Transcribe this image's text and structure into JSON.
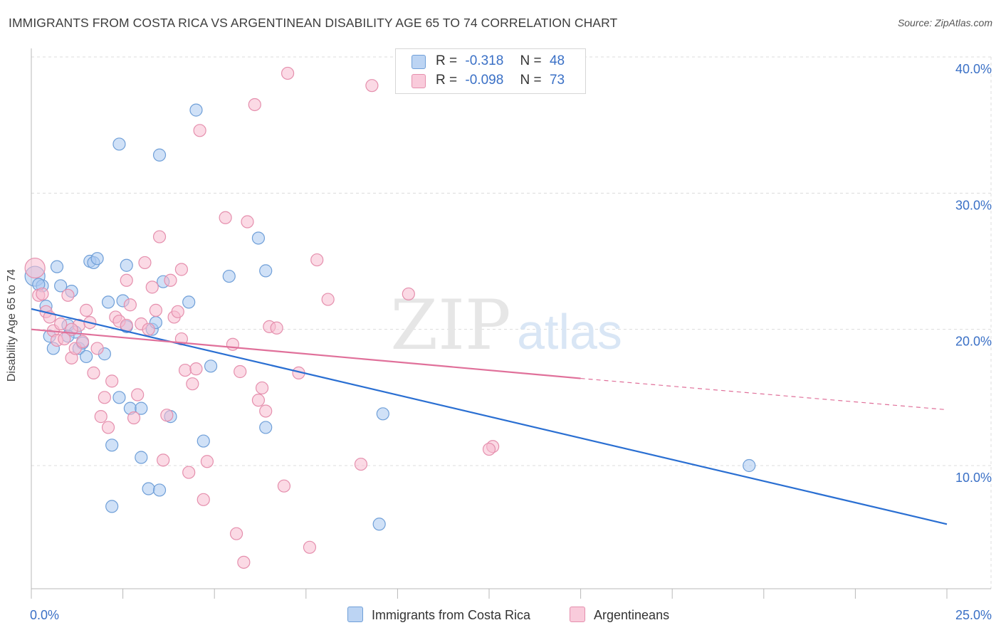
{
  "title": "IMMIGRANTS FROM COSTA RICA VS ARGENTINEAN DISABILITY AGE 65 TO 74 CORRELATION CHART",
  "source": "Source: ZipAtlas.com",
  "watermark": {
    "zip": "ZIP",
    "atlas": "atlas"
  },
  "legend": {
    "rows": [
      {
        "r_label": "R =",
        "r_value": "-0.318",
        "n_label": "N =",
        "n_value": "48"
      },
      {
        "r_label": "R =",
        "r_value": "-0.098",
        "n_label": "N =",
        "n_value": "73"
      }
    ]
  },
  "colors": {
    "blue_fill": "#a9c8f0",
    "blue_stroke": "#6f9fd8",
    "blue_line": "#2a6fd2",
    "pink_fill": "#f7bcd0",
    "pink_stroke": "#e58fad",
    "pink_line": "#e0709a",
    "axis_text": "#3a70c6",
    "grid": "#dcdcdc"
  },
  "chart_data": {
    "type": "scatter",
    "title": "IMMIGRANTS FROM COSTA RICA VS ARGENTINEAN DISABILITY AGE 65 TO 74 CORRELATION CHART",
    "xlabel": "",
    "ylabel": "Disability Age 65 to 74",
    "xlim": [
      0,
      25
    ],
    "ylim": [
      0,
      42
    ],
    "x_tick_labels": [
      {
        "value": 0,
        "label": "0.0%"
      },
      {
        "value": 25,
        "label": "25.0%"
      }
    ],
    "y_tick_labels": [
      {
        "value": 10,
        "label": "10.0%"
      },
      {
        "value": 20,
        "label": "20.0%"
      },
      {
        "value": 30,
        "label": "30.0%"
      },
      {
        "value": 40,
        "label": "40.0%"
      }
    ],
    "grid": true,
    "legend_position": "top-center",
    "series": [
      {
        "name": "Immigrants from Costa Rica",
        "color": "#a9c8f0",
        "points": [
          [
            0.1,
            23.9
          ],
          [
            0.3,
            23.2
          ],
          [
            0.4,
            21.7
          ],
          [
            0.5,
            19.5
          ],
          [
            0.6,
            18.6
          ],
          [
            0.7,
            24.6
          ],
          [
            0.8,
            23.2
          ],
          [
            1.0,
            20.3
          ],
          [
            1.1,
            22.8
          ],
          [
            1.2,
            19.8
          ],
          [
            1.3,
            18.6
          ],
          [
            1.4,
            19.0
          ],
          [
            1.5,
            18.0
          ],
          [
            1.6,
            25.0
          ],
          [
            1.7,
            24.9
          ],
          [
            1.8,
            25.2
          ],
          [
            2.0,
            18.2
          ],
          [
            2.1,
            22.0
          ],
          [
            2.2,
            11.5
          ],
          [
            2.4,
            15.0
          ],
          [
            2.5,
            22.1
          ],
          [
            2.6,
            20.2
          ],
          [
            2.7,
            14.2
          ],
          [
            3.0,
            10.6
          ],
          [
            3.2,
            8.3
          ],
          [
            3.3,
            20.0
          ],
          [
            3.4,
            20.5
          ],
          [
            3.5,
            8.2
          ],
          [
            3.6,
            23.5
          ],
          [
            4.3,
            22.0
          ],
          [
            4.5,
            36.1
          ],
          [
            4.7,
            11.8
          ],
          [
            4.9,
            17.3
          ],
          [
            5.4,
            23.9
          ],
          [
            6.2,
            26.7
          ],
          [
            6.4,
            24.3
          ],
          [
            6.4,
            12.8
          ],
          [
            9.6,
            13.8
          ],
          [
            9.5,
            5.7
          ],
          [
            19.6,
            10.0
          ],
          [
            2.4,
            33.6
          ],
          [
            3.5,
            32.8
          ],
          [
            2.6,
            24.7
          ],
          [
            3.0,
            14.2
          ],
          [
            1.0,
            19.5
          ],
          [
            0.2,
            23.3
          ],
          [
            3.8,
            13.6
          ],
          [
            2.2,
            7.0
          ]
        ]
      },
      {
        "name": "Argentineans",
        "color": "#f7bcd0",
        "points": [
          [
            0.1,
            24.5
          ],
          [
            0.2,
            22.5
          ],
          [
            0.3,
            22.6
          ],
          [
            0.4,
            21.3
          ],
          [
            0.5,
            20.9
          ],
          [
            0.6,
            19.9
          ],
          [
            0.7,
            19.2
          ],
          [
            0.8,
            20.4
          ],
          [
            0.9,
            19.3
          ],
          [
            1.0,
            22.5
          ],
          [
            1.1,
            17.9
          ],
          [
            1.2,
            18.6
          ],
          [
            1.3,
            20.3
          ],
          [
            1.4,
            19.1
          ],
          [
            1.5,
            21.4
          ],
          [
            1.6,
            20.5
          ],
          [
            1.7,
            16.8
          ],
          [
            1.8,
            18.6
          ],
          [
            1.9,
            13.6
          ],
          [
            2.0,
            15.0
          ],
          [
            2.1,
            12.8
          ],
          [
            2.2,
            16.2
          ],
          [
            2.3,
            20.9
          ],
          [
            2.4,
            20.6
          ],
          [
            2.6,
            23.6
          ],
          [
            2.7,
            21.8
          ],
          [
            2.8,
            13.5
          ],
          [
            2.9,
            15.2
          ],
          [
            3.0,
            20.4
          ],
          [
            3.1,
            24.9
          ],
          [
            3.2,
            20.0
          ],
          [
            3.3,
            23.1
          ],
          [
            3.4,
            21.4
          ],
          [
            3.5,
            26.8
          ],
          [
            3.6,
            10.4
          ],
          [
            3.7,
            13.7
          ],
          [
            3.8,
            23.6
          ],
          [
            3.9,
            20.9
          ],
          [
            4.0,
            21.3
          ],
          [
            4.1,
            24.4
          ],
          [
            4.2,
            17.0
          ],
          [
            4.3,
            9.5
          ],
          [
            4.4,
            16.0
          ],
          [
            4.5,
            17.1
          ],
          [
            4.6,
            34.6
          ],
          [
            4.7,
            7.5
          ],
          [
            4.8,
            10.3
          ],
          [
            5.3,
            28.2
          ],
          [
            5.5,
            18.9
          ],
          [
            5.6,
            5.0
          ],
          [
            5.7,
            16.9
          ],
          [
            5.8,
            2.9
          ],
          [
            5.9,
            27.9
          ],
          [
            6.1,
            36.5
          ],
          [
            6.2,
            14.8
          ],
          [
            6.3,
            15.7
          ],
          [
            6.4,
            14.0
          ],
          [
            6.5,
            20.2
          ],
          [
            6.7,
            20.1
          ],
          [
            6.9,
            8.5
          ],
          [
            7.0,
            38.8
          ],
          [
            7.3,
            16.8
          ],
          [
            7.6,
            4.0
          ],
          [
            7.8,
            25.1
          ],
          [
            8.1,
            22.2
          ],
          [
            9.0,
            10.1
          ],
          [
            9.3,
            37.9
          ],
          [
            10.3,
            22.6
          ],
          [
            12.6,
            11.4
          ],
          [
            12.5,
            11.2
          ],
          [
            4.1,
            19.3
          ],
          [
            2.6,
            20.3
          ],
          [
            1.1,
            20.0
          ]
        ]
      }
    ],
    "trend_lines": [
      {
        "series": "Immigrants from Costa Rica",
        "x0": 0,
        "y0": 21.5,
        "x1": 25,
        "y1": 5.7,
        "dashed_from": null
      },
      {
        "series": "Argentineans",
        "x0": 0,
        "y0": 20.0,
        "x1": 15.0,
        "y1": 16.4,
        "dashed_to_x": 25,
        "dashed_to_y": 14.1
      }
    ]
  }
}
